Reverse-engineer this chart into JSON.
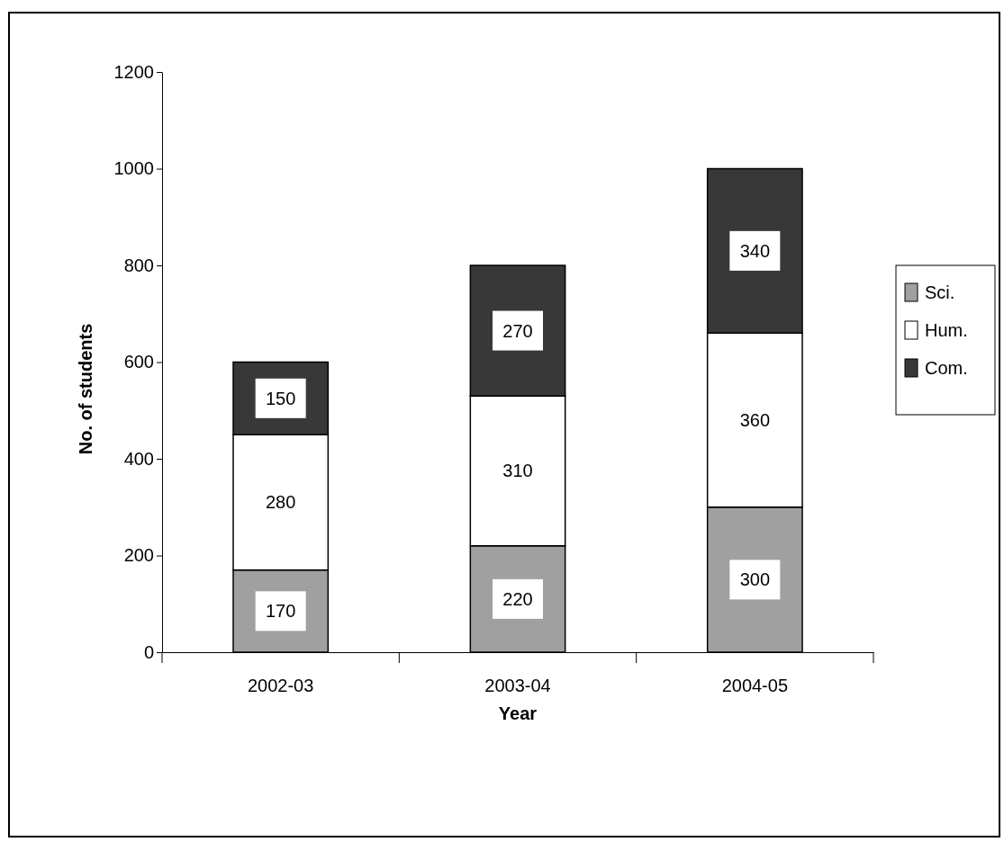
{
  "chart_data": {
    "type": "bar",
    "stacked": true,
    "xlabel": "Year",
    "ylabel": "No. of students",
    "categories": [
      "2002-03",
      "2003-04",
      "2004-05"
    ],
    "series": [
      {
        "name": "Sci.",
        "color": "#a0a0a0",
        "values": [
          170,
          220,
          300
        ]
      },
      {
        "name": "Hum.",
        "color": "#ffffff",
        "values": [
          280,
          310,
          360
        ]
      },
      {
        "name": "Com.",
        "color": "#383838",
        "values": [
          150,
          270,
          340
        ]
      }
    ],
    "ylim": [
      0,
      1200
    ],
    "yticks": [
      0,
      200,
      400,
      600,
      800,
      1000,
      1200
    ],
    "data_labels": true,
    "legend": "right",
    "grid": false
  }
}
